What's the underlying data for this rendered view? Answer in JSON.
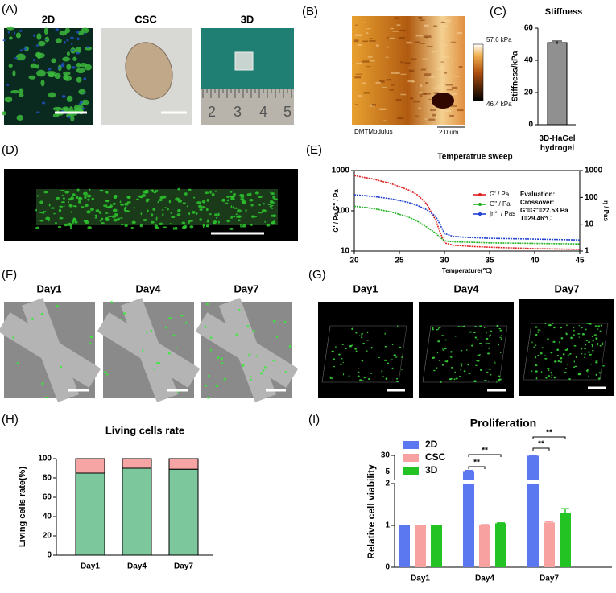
{
  "panel_labels": [
    "(A)",
    "(B)",
    "(C)",
    "(D)",
    "(E)",
    "(F)",
    "(G)",
    "(H)",
    "(I)"
  ],
  "images": {
    "a": {
      "titles": [
        "2D",
        "CSC",
        "3D"
      ],
      "ruler": [
        "2",
        "3",
        "4",
        "5"
      ]
    },
    "b": {
      "scale_max": "57.6 kPa",
      "scale_min": "46.4 kPa",
      "channel": "DMTModulus",
      "scale_bar": "2.0 um"
    },
    "f": {
      "titles": [
        "Day1",
        "Day4",
        "Day7"
      ]
    },
    "g": {
      "titles": [
        "Day1",
        "Day4",
        "Day7"
      ]
    }
  },
  "chart_data": [
    {
      "type": "bar",
      "title": "Stiffness",
      "ylabel": "Stiffness/kPa",
      "categories": [
        "3D-HaGel hydrogel"
      ],
      "values": [
        51
      ],
      "errors": [
        1
      ],
      "color": "#909090",
      "ylim": [
        0,
        60
      ],
      "yticks": [
        0,
        20,
        40,
        60
      ]
    },
    {
      "type": "line",
      "title": "Temperatrue sweep",
      "xlabel": "Temperature(℃)",
      "ylabel": "G' / Pa,G'' / Pa",
      "y2label": "η / Pas",
      "x": [
        20,
        22,
        24,
        26,
        27,
        28,
        29,
        29.5,
        30,
        31,
        33,
        35,
        40,
        45
      ],
      "series": [
        {
          "name": "G' / Pa",
          "color": "#e02020",
          "values": [
            750,
            620,
            480,
            330,
            250,
            150,
            60,
            30,
            16,
            14,
            13,
            12.5,
            11.5,
            11
          ]
        },
        {
          "name": "G'' / Pa",
          "color": "#20b020",
          "values": [
            130,
            115,
            95,
            70,
            55,
            40,
            28,
            22,
            18,
            17,
            16.5,
            16,
            15.5,
            15
          ]
        },
        {
          "name": "|η*| / Pas",
          "color": "#2040d0",
          "axis": "y2",
          "values": [
            126,
            110,
            90,
            65,
            50,
            35,
            20,
            10,
            4.5,
            3.5,
            3.2,
            3,
            2.8,
            2.6
          ]
        }
      ],
      "xlim": [
        20,
        45
      ],
      "xticks": [
        20,
        25,
        30,
        35,
        40,
        45
      ],
      "ylim": [
        10,
        1000
      ],
      "yticks": [
        10,
        100,
        1000
      ],
      "ylog": true,
      "y2lim": [
        1,
        1000
      ],
      "y2ticks": [
        1,
        10,
        100,
        1000
      ],
      "y2log": true,
      "annotations": [
        "Evaluation:",
        "Crossover:",
        "G'=G''=22.53 Pa",
        "T=29.46℃"
      ]
    },
    {
      "type": "stacked_bar",
      "title": "Living cells rate",
      "ylabel": "Living cells rate(%)",
      "categories": [
        "Day1",
        "Day4",
        "Day7"
      ],
      "series": [
        {
          "color": "#7cc79c",
          "values": [
            85,
            90,
            89
          ]
        },
        {
          "color": "#f6a4a4",
          "values": [
            15,
            10,
            11
          ]
        }
      ],
      "ylim": [
        0,
        100
      ],
      "yticks": [
        0,
        20,
        40,
        60,
        80,
        100
      ]
    },
    {
      "type": "grouped_bar",
      "title": "Proliferation",
      "ylabel": "Relative cell viability",
      "categories": [
        "Day1",
        "Day4",
        "Day7"
      ],
      "series": [
        {
          "name": "2D",
          "color": "#5b78f0",
          "values": [
            1,
            5.5,
            29
          ],
          "errors": [
            0,
            0.3,
            0.5
          ]
        },
        {
          "name": "CSC",
          "color": "#f7a1a1",
          "values": [
            1,
            1,
            1.07
          ],
          "errors": [
            0,
            0.02,
            0.02
          ]
        },
        {
          "name": "3D",
          "color": "#22c322",
          "values": [
            1,
            1.05,
            1.3
          ],
          "errors": [
            0,
            0.01,
            0.1
          ]
        }
      ],
      "ylim": [
        0,
        30
      ],
      "yticks": [
        0,
        1,
        2,
        5,
        30
      ],
      "axis_break": 2,
      "upper_scale": "log",
      "annotations": [
        "**",
        "**",
        "**",
        "**"
      ]
    }
  ]
}
